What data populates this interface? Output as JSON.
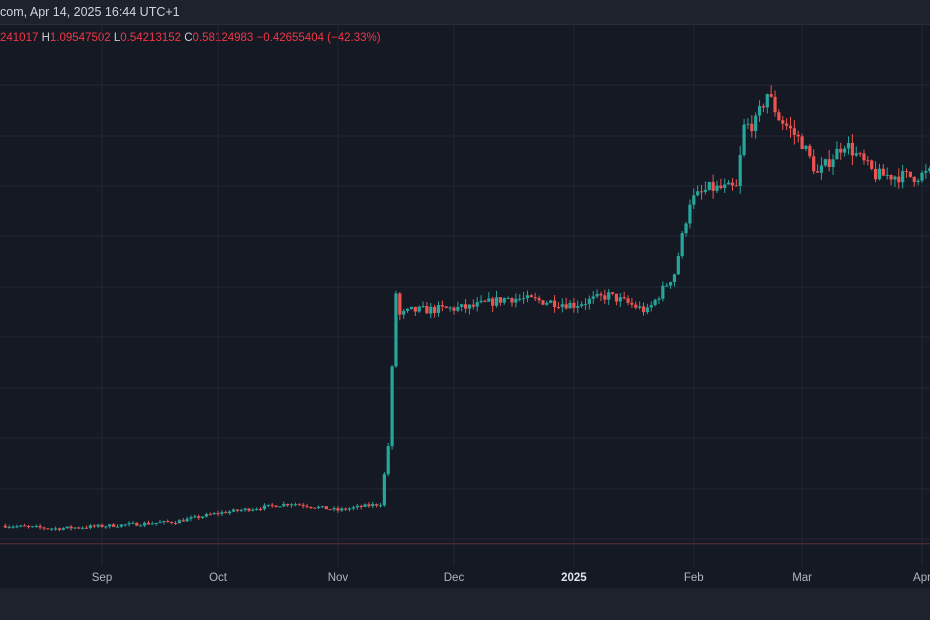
{
  "header": {
    "title_text": "com, Apr 14, 2025 16:44 UTC+1"
  },
  "ohlc": {
    "open_partial": "241017",
    "h_label": "H",
    "high": "1.09547502",
    "l_label": "L",
    "low": "0.54213152",
    "c_label": "C",
    "close": "0.58124983",
    "change": "−0.42655404 (−42.33%)"
  },
  "colors": {
    "background": "#151924",
    "grid": "#222633",
    "up": "#26a69a",
    "down": "#ef5350",
    "price_line": "#5c3034"
  },
  "chart_data": {
    "type": "candlestick",
    "x_tick_labels": [
      {
        "label": "Sep",
        "date": "2024-09-01"
      },
      {
        "label": "Oct",
        "date": "2024-10-01"
      },
      {
        "label": "Nov",
        "date": "2024-11-01"
      },
      {
        "label": "Dec",
        "date": "2024-12-01"
      },
      {
        "label": "2025",
        "date": "2025-01-01",
        "bold": true
      },
      {
        "label": "Feb",
        "date": "2025-02-01"
      },
      {
        "label": "Mar",
        "date": "2025-03-01"
      },
      {
        "label": "Apr",
        "date": "2025-04-01"
      }
    ],
    "y_range_estimate": [
      0.2,
      1.45
    ],
    "grid": true,
    "price_line_value": 0.248,
    "ohlc_last": {
      "high": 1.09547502,
      "low": 0.54213152,
      "close": 0.58124983,
      "change": -0.42655404,
      "change_pct": -42.33
    },
    "anchor_dates": [
      "2024-08-07",
      "2024-08-20",
      "2024-09-01",
      "2024-09-20",
      "2024-10-01",
      "2024-10-20",
      "2024-11-01",
      "2024-11-12",
      "2024-11-14",
      "2024-11-16",
      "2024-11-17",
      "2024-11-20",
      "2024-12-05",
      "2024-12-15",
      "2024-12-25",
      "2025-01-01",
      "2025-01-10",
      "2025-01-20",
      "2025-01-27",
      "2025-01-31",
      "2025-02-05",
      "2025-02-12",
      "2025-02-14",
      "2025-02-17",
      "2025-02-20",
      "2025-02-23",
      "2025-03-01",
      "2025-03-05",
      "2025-03-12",
      "2025-03-20",
      "2025-03-30",
      "2025-04-06"
    ],
    "anchor_closes": [
      0.298,
      0.29,
      0.297,
      0.309,
      0.333,
      0.36,
      0.341,
      0.359,
      0.52,
      0.945,
      0.882,
      0.895,
      0.904,
      0.931,
      0.921,
      0.912,
      0.938,
      0.893,
      1.0,
      1.2,
      1.235,
      1.235,
      1.405,
      1.418,
      1.5,
      1.432,
      1.362,
      1.274,
      1.362,
      1.272,
      1.268,
      1.285
    ]
  }
}
